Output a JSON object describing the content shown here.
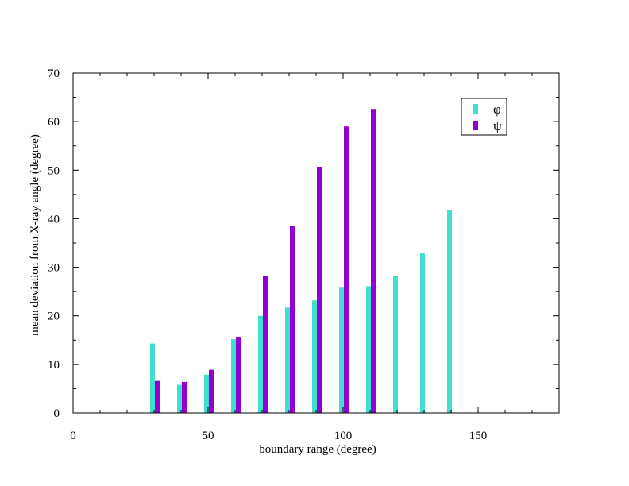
{
  "chart_data": {
    "type": "bar",
    "xlabel": "boundary range (degree)",
    "ylabel": "mean deviation from X-ray angle (degree)",
    "xlim": [
      0,
      180
    ],
    "ylim": [
      0,
      70
    ],
    "x_ticks": [
      0,
      50,
      100,
      150
    ],
    "y_ticks": [
      0,
      10,
      20,
      30,
      40,
      50,
      60,
      70
    ],
    "grid": false,
    "legend_position": "top-right",
    "series": [
      {
        "name": "φ",
        "color": "#40E0D0",
        "x": [
          30,
          40,
          50,
          60,
          70,
          80,
          90,
          100,
          110,
          120,
          130,
          140
        ],
        "values": [
          14.3,
          5.8,
          7.9,
          15.2,
          20.0,
          21.7,
          23.2,
          25.8,
          26.1,
          28.2,
          33.0,
          41.7
        ]
      },
      {
        "name": "ψ",
        "color": "#9400D3",
        "x": [
          30,
          40,
          50,
          60,
          70,
          80,
          90,
          100,
          110
        ],
        "values": [
          6.6,
          6.4,
          8.9,
          15.7,
          28.2,
          38.6,
          50.7,
          59.0,
          62.6
        ]
      }
    ]
  }
}
